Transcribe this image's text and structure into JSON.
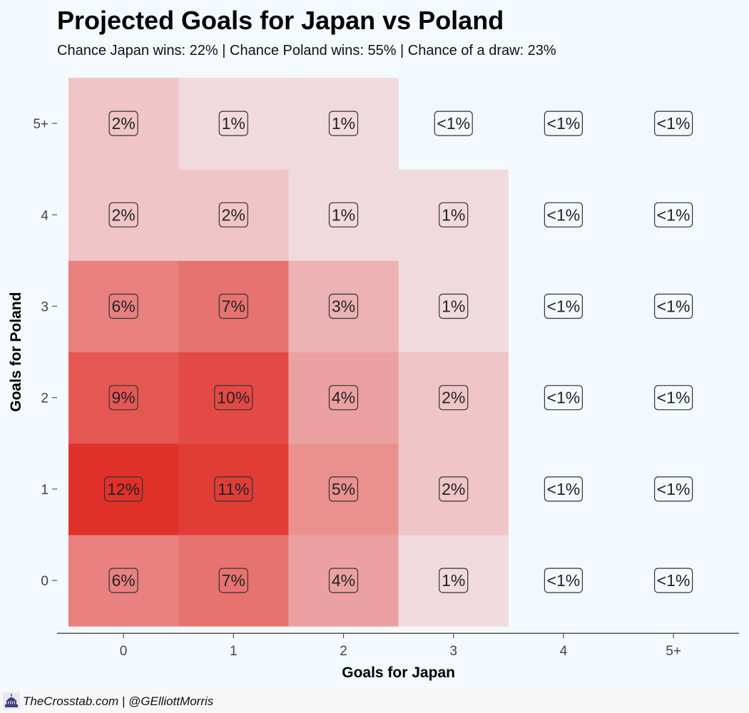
{
  "title": "Projected Goals for Japan vs Poland",
  "subtitle": "Chance Japan wins: 22% | Chance Poland wins: 55% | Chance of a draw: 23%",
  "footer": {
    "text": "TheCrosstab.com | @GElliottMorris"
  },
  "chart_data": {
    "type": "heatmap",
    "title": "Projected Goals for Japan vs Poland",
    "subtitle": "Chance Japan wins: 22% | Chance Poland wins: 55% | Chance of a draw: 23%",
    "xlabel": "Goals for Japan",
    "ylabel": "Goals for Poland",
    "x_categories": [
      "0",
      "1",
      "2",
      "3",
      "4",
      "5+"
    ],
    "y_categories": [
      "0",
      "1",
      "2",
      "3",
      "4",
      "5+"
    ],
    "cells": [
      {
        "x": "0",
        "y": "0",
        "value": 6,
        "label": "6%"
      },
      {
        "x": "1",
        "y": "0",
        "value": 7,
        "label": "7%"
      },
      {
        "x": "2",
        "y": "0",
        "value": 4,
        "label": "4%"
      },
      {
        "x": "3",
        "y": "0",
        "value": 1,
        "label": "1%"
      },
      {
        "x": "4",
        "y": "0",
        "value": 0,
        "label": "<1%"
      },
      {
        "x": "5+",
        "y": "0",
        "value": 0,
        "label": "<1%"
      },
      {
        "x": "0",
        "y": "1",
        "value": 12,
        "label": "12%"
      },
      {
        "x": "1",
        "y": "1",
        "value": 11,
        "label": "11%"
      },
      {
        "x": "2",
        "y": "1",
        "value": 5,
        "label": "5%"
      },
      {
        "x": "3",
        "y": "1",
        "value": 2,
        "label": "2%"
      },
      {
        "x": "4",
        "y": "1",
        "value": 0,
        "label": "<1%"
      },
      {
        "x": "5+",
        "y": "1",
        "value": 0,
        "label": "<1%"
      },
      {
        "x": "0",
        "y": "2",
        "value": 9,
        "label": "9%"
      },
      {
        "x": "1",
        "y": "2",
        "value": 10,
        "label": "10%"
      },
      {
        "x": "2",
        "y": "2",
        "value": 4,
        "label": "4%"
      },
      {
        "x": "3",
        "y": "2",
        "value": 2,
        "label": "2%"
      },
      {
        "x": "4",
        "y": "2",
        "value": 0,
        "label": "<1%"
      },
      {
        "x": "5+",
        "y": "2",
        "value": 0,
        "label": "<1%"
      },
      {
        "x": "0",
        "y": "3",
        "value": 6,
        "label": "6%"
      },
      {
        "x": "1",
        "y": "3",
        "value": 7,
        "label": "7%"
      },
      {
        "x": "2",
        "y": "3",
        "value": 3,
        "label": "3%"
      },
      {
        "x": "3",
        "y": "3",
        "value": 1,
        "label": "1%"
      },
      {
        "x": "4",
        "y": "3",
        "value": 0,
        "label": "<1%"
      },
      {
        "x": "5+",
        "y": "3",
        "value": 0,
        "label": "<1%"
      },
      {
        "x": "0",
        "y": "4",
        "value": 2,
        "label": "2%"
      },
      {
        "x": "1",
        "y": "4",
        "value": 2,
        "label": "2%"
      },
      {
        "x": "2",
        "y": "4",
        "value": 1,
        "label": "1%"
      },
      {
        "x": "3",
        "y": "4",
        "value": 1,
        "label": "1%"
      },
      {
        "x": "4",
        "y": "4",
        "value": 0,
        "label": "<1%"
      },
      {
        "x": "5+",
        "y": "4",
        "value": 0,
        "label": "<1%"
      },
      {
        "x": "0",
        "y": "5+",
        "value": 2,
        "label": "2%"
      },
      {
        "x": "1",
        "y": "5+",
        "value": 1,
        "label": "1%"
      },
      {
        "x": "2",
        "y": "5+",
        "value": 1,
        "label": "1%"
      },
      {
        "x": "3",
        "y": "5+",
        "value": 0,
        "label": "<1%"
      },
      {
        "x": "4",
        "y": "5+",
        "value": 0,
        "label": "<1%"
      },
      {
        "x": "5+",
        "y": "5+",
        "value": 0,
        "label": "<1%"
      }
    ],
    "color_scale": {
      "low": "#f4f9fe",
      "high": "#e0302a"
    },
    "grid": false,
    "legend": "none"
  }
}
